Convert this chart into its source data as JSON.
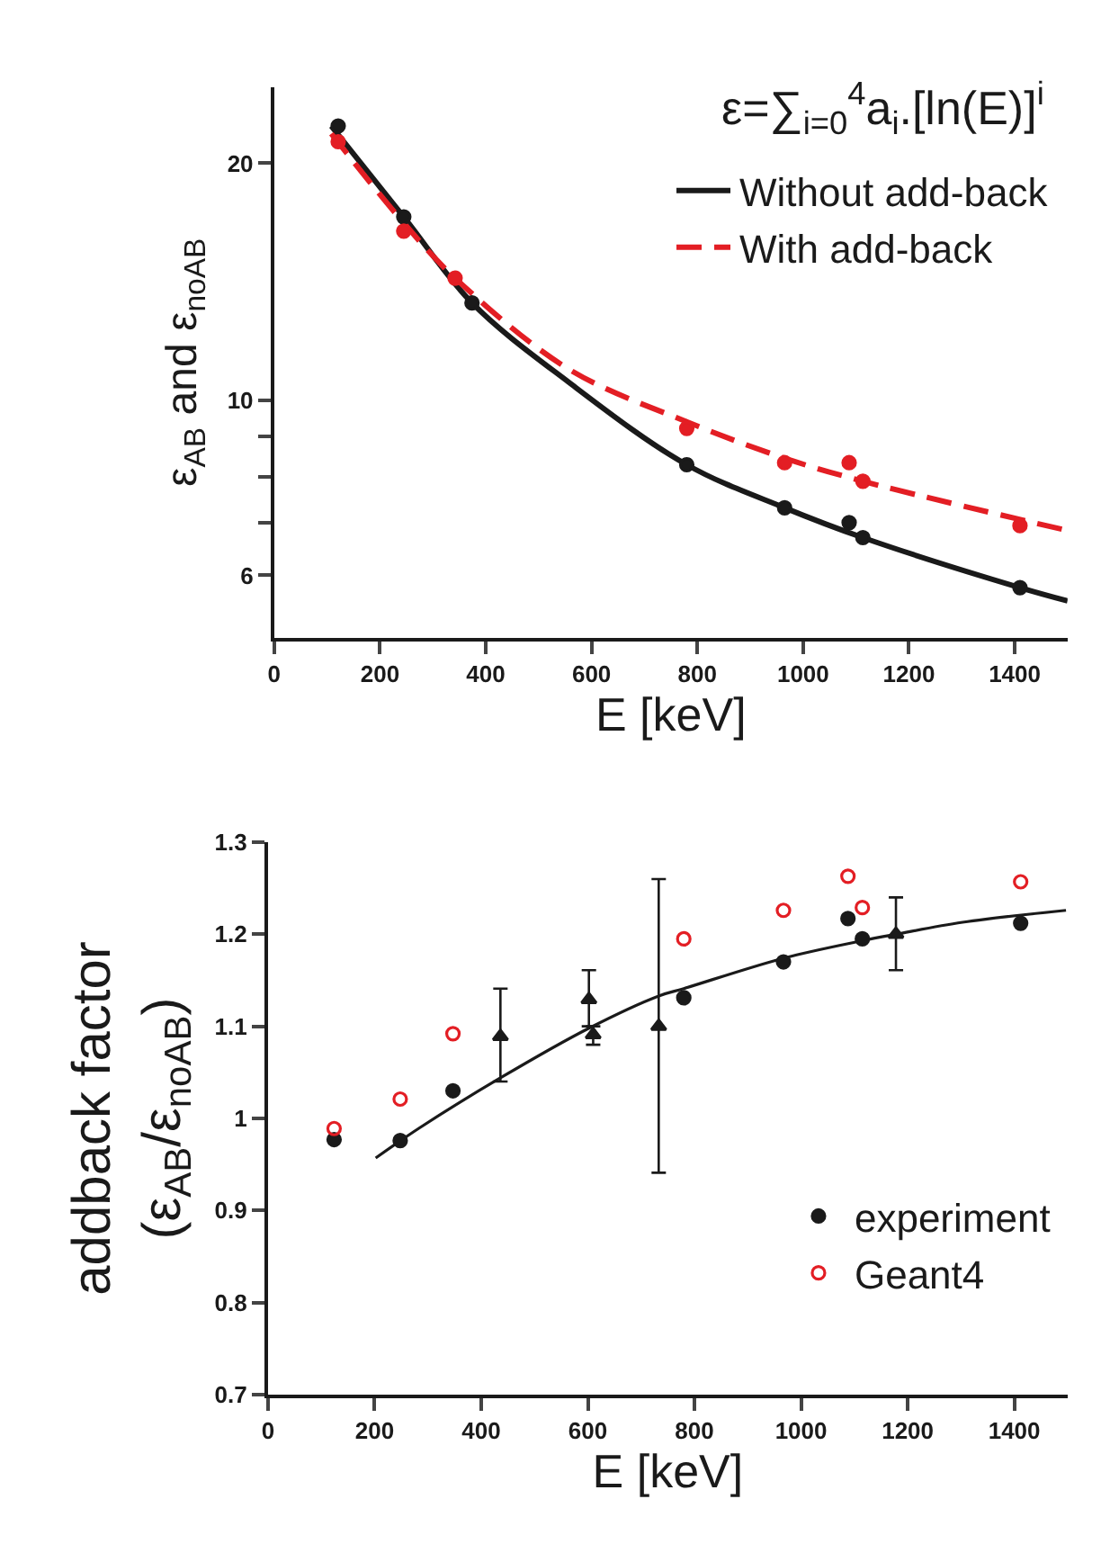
{
  "chart_data": [
    {
      "type": "line",
      "xlabel": "E [keV]",
      "ylabel": "ε$_{AB}$ and ε$_{noAB}$",
      "log": "y",
      "xlim": [
        0,
        1500
      ],
      "xticks": [
        0,
        200,
        400,
        600,
        800,
        1000,
        1200,
        1400
      ],
      "ylim": [
        5,
        25
      ],
      "yticks": [
        6,
        {
          "value": 7,
          "label": null
        },
        {
          "value": 8,
          "label": null
        },
        {
          "value": 9,
          "label": null
        },
        10,
        20
      ],
      "legend": "top right",
      "annotations": [
        "ε=∑$_{i=0}$$^{4}$a$_{i}$.[ln(E)]$^{i}$"
      ],
      "series": [
        {
          "name": "Without add-back",
          "color": "#1a1a1a",
          "line_style": "solid",
          "marker": "none",
          "x": [
            108,
            245,
            374,
            556,
            780,
            965,
            1113,
            1410,
            1500
          ],
          "values": [
            22.3,
            17.1,
            13.3,
            10.56,
            8.29,
            7.31,
            6.7,
            5.79,
            5.57
          ]
        },
        {
          "name": "With add-back",
          "color": "#e31e24",
          "line_style": "dashed",
          "marker": "none",
          "x": [
            108,
            245,
            342,
            556,
            780,
            965,
            1113,
            1500
          ],
          "values": [
            21.8,
            16.8,
            14.3,
            10.97,
            9.4,
            8.45,
            7.9,
            6.84
          ]
        },
        {
          "type": "scatter",
          "color": "#1a1a1a",
          "marker": "circle",
          "x": [
            121,
            245,
            374,
            780,
            965,
            1087,
            1113,
            1410
          ],
          "values": [
            22.3,
            17.1,
            13.3,
            8.29,
            7.31,
            7.0,
            6.7,
            5.79
          ]
        },
        {
          "type": "scatter",
          "color": "#e31e24",
          "marker": "circle",
          "x": [
            121,
            245,
            342,
            780,
            965,
            1087,
            1113,
            1410
          ],
          "values": [
            21.3,
            16.4,
            14.3,
            9.22,
            8.34,
            8.34,
            7.9,
            6.94
          ]
        }
      ]
    },
    {
      "type": "scatter",
      "xlabel": "E [keV]",
      "ylabel": "addback factor\n(ε$_{AB}$/ε$_{noAB}$)",
      "xlim": [
        0,
        1500
      ],
      "xticks": [
        0,
        200,
        400,
        600,
        800,
        1000,
        1200,
        1400
      ],
      "ylim": [
        0.7,
        1.3
      ],
      "yticks": [
        0.7,
        0.8,
        0.9,
        1,
        1.1,
        1.2,
        1.3
      ],
      "legend": "bottom right",
      "series": [
        {
          "type": "line",
          "color": "#1a1a1a",
          "line_style": "solid",
          "marker": "none",
          "x": [
            202,
            285,
            436,
            602,
            733,
            780,
            967,
            1115,
            1178,
            1303,
            1497
          ],
          "values": [
            0.957,
            0.99,
            1.044,
            1.098,
            1.133,
            1.141,
            1.174,
            1.193,
            1.2,
            1.213,
            1.226
          ]
        },
        {
          "color": "#1a1a1a",
          "marker": "triangle",
          "x": [
            436,
            602,
            610,
            733,
            1178
          ],
          "values": [
            1.089,
            1.129,
            1.091,
            1.1,
            1.2
          ],
          "errors": [
            [
              1.04,
              1.141
            ],
            [
              1.1,
              1.161
            ],
            [
              1.08,
              1.1
            ],
            [
              0.941,
              1.26
            ],
            [
              1.161,
              1.24
            ]
          ]
        },
        {
          "name": "experiment",
          "color": "#1a1a1a",
          "marker": "circle",
          "x": [
            124,
            248,
            347,
            780,
            967,
            1088,
            1115,
            1412
          ],
          "values": [
            0.977,
            0.976,
            1.03,
            1.131,
            1.17,
            1.217,
            1.195,
            1.212
          ]
        },
        {
          "name": "Geant4",
          "color": "#e31e24",
          "marker": "circle-open",
          "x": [
            124,
            248,
            347,
            780,
            967,
            1088,
            1115,
            1412
          ],
          "values": [
            0.989,
            1.021,
            1.092,
            1.195,
            1.226,
            1.263,
            1.229,
            1.257
          ]
        }
      ]
    }
  ]
}
